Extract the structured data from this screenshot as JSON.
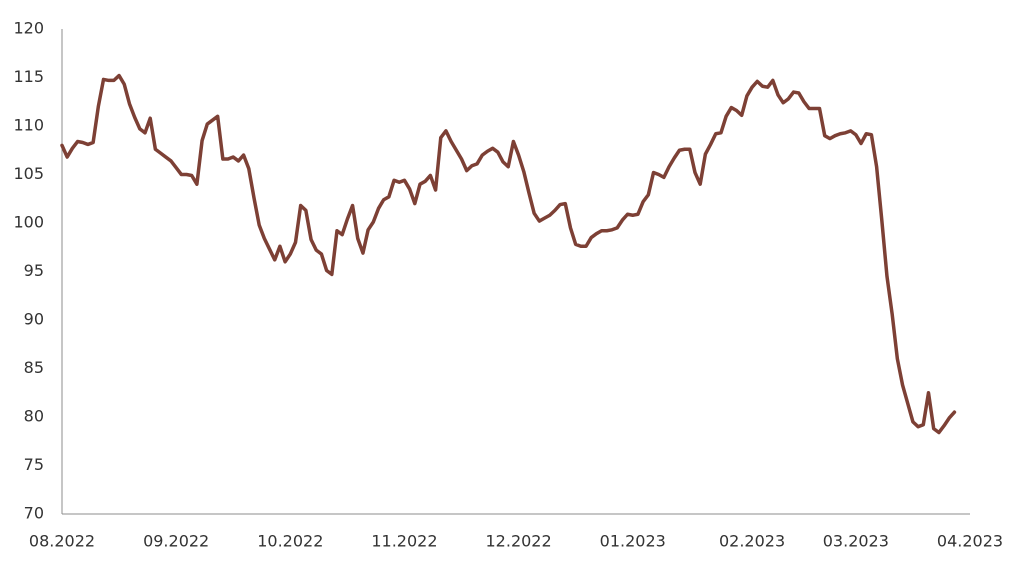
{
  "chart_data": {
    "type": "line",
    "color": "#7d4035",
    "categories": [
      "08.2022",
      null,
      null,
      null,
      null,
      null,
      null,
      null,
      null,
      null,
      null,
      null,
      null,
      null,
      null,
      null,
      null,
      null,
      null,
      null,
      null,
      null,
      "09.2022",
      null,
      null,
      null,
      null,
      null,
      null,
      null,
      null,
      null,
      null,
      null,
      null,
      null,
      null,
      null,
      null,
      null,
      null,
      null,
      null,
      null,
      "10.2022",
      null,
      null,
      null,
      null,
      null,
      null,
      null,
      null,
      null,
      null,
      null,
      null,
      null,
      null,
      null,
      null,
      null,
      null,
      null,
      null,
      null,
      "11.2022",
      null,
      null,
      null,
      null,
      null,
      null,
      null,
      null,
      null,
      null,
      null,
      null,
      null,
      null,
      null,
      null,
      null,
      null,
      null,
      null,
      null,
      "12.2022",
      null,
      null,
      null,
      null,
      null,
      null,
      null,
      null,
      null,
      null,
      null,
      null,
      null,
      null,
      null,
      null,
      null,
      null,
      null,
      null,
      null,
      "01.2023",
      null,
      null,
      null,
      null,
      null,
      null,
      null,
      null,
      null,
      null,
      null,
      null,
      null,
      null,
      null,
      null,
      null,
      null,
      null,
      null,
      null,
      null,
      "02.2023",
      null,
      null,
      null,
      null,
      null,
      null,
      null,
      null,
      null,
      null,
      null,
      null,
      null,
      null,
      null,
      null,
      null,
      null,
      null,
      "03.2023",
      null,
      null,
      null,
      null,
      null,
      null,
      null,
      null,
      null,
      null,
      null,
      null,
      null,
      null,
      null,
      null,
      null,
      null,
      null,
      null,
      null,
      "04.2023"
    ],
    "values": [
      108,
      106.8,
      107.7,
      108.4,
      108.3,
      108.1,
      108.3,
      112,
      114.8,
      114.7,
      114.7,
      115.2,
      114.3,
      112.3,
      110.9,
      109.7,
      109.3,
      110.8,
      107.6,
      107.2,
      106.8,
      106.4,
      105.7,
      105,
      105,
      104.9,
      104,
      108.5,
      110.2,
      110.6,
      111,
      106.6,
      106.6,
      106.8,
      106.4,
      107,
      105.6,
      102.6,
      99.8,
      98.4,
      97.3,
      96.2,
      97.6,
      96,
      96.8,
      98,
      101.8,
      101.3,
      98.3,
      97.2,
      96.8,
      95.1,
      94.7,
      99.2,
      98.8,
      100.4,
      101.8,
      98.4,
      96.9,
      99.3,
      100.1,
      101.5,
      102.4,
      102.7,
      104.4,
      104.2,
      104.4,
      103.5,
      102,
      104,
      104.3,
      104.9,
      103.4,
      108.8,
      109.5,
      108.4,
      107.5,
      106.6,
      105.4,
      105.9,
      106.1,
      107,
      107.4,
      107.7,
      107.3,
      106.3,
      105.8,
      108.4,
      107,
      105.3,
      103.1,
      101,
      100.2,
      100.5,
      100.8,
      101.3,
      101.9,
      102,
      99.5,
      97.8,
      97.6,
      97.6,
      98.5,
      98.9,
      99.2,
      99.2,
      99.3,
      99.5,
      100.3,
      100.9,
      100.8,
      100.9,
      102.2,
      102.9,
      105.2,
      105,
      104.7,
      105.8,
      106.7,
      107.5,
      107.6,
      107.6,
      105.2,
      104,
      107.1,
      108.1,
      109.2,
      109.3,
      111,
      111.9,
      111.6,
      111.1,
      113.1,
      114,
      114.6,
      114.1,
      114,
      114.7,
      113.2,
      112.4,
      112.8,
      113.5,
      113.4,
      112.5,
      111.8,
      111.8,
      111.8,
      109,
      108.7,
      109,
      109.2,
      109.3,
      109.5,
      109.1,
      108.2,
      109.2,
      109.1,
      105.8,
      100.3,
      94.5,
      90.6,
      86,
      83.3,
      81.4,
      79.5,
      79,
      79.2,
      82.5,
      78.8,
      78.4,
      79.1,
      79.9,
      80.5,
      null,
      null,
      null
    ],
    "ylim": [
      70,
      120
    ],
    "yticks": [
      70,
      75,
      80,
      85,
      90,
      95,
      100,
      105,
      110,
      115,
      120
    ]
  }
}
